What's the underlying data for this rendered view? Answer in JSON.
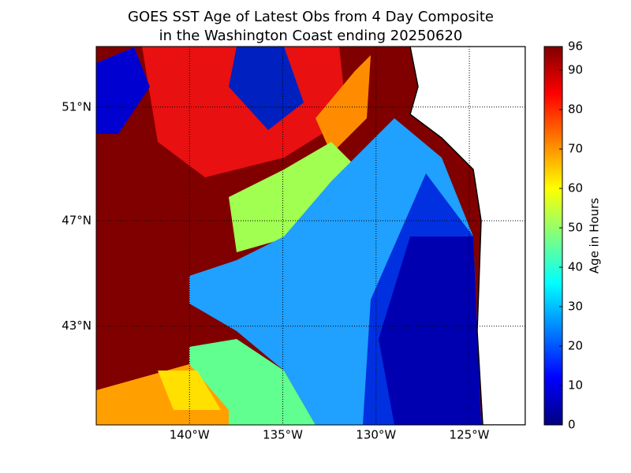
{
  "title": [
    "GOES SST Age of Latest Obs from 4 Day Composite",
    "in the Washington Coast ending 20250620"
  ],
  "map": {
    "lon_range": [
      -145,
      -122
    ],
    "lat_range": [
      39,
      53
    ],
    "lat_ticks": [
      {
        "value": 51,
        "label": "51°N"
      },
      {
        "value": 47,
        "label": "47°N"
      },
      {
        "value": 43,
        "label": "43°N"
      }
    ],
    "lon_ticks": [
      {
        "value": -140,
        "label": "140°W"
      },
      {
        "value": -135,
        "label": "135°W"
      },
      {
        "value": -130,
        "label": "130°W"
      },
      {
        "value": -125,
        "label": "125°W"
      }
    ],
    "grid": true
  },
  "colorbar": {
    "label": "Age in Hours",
    "range": [
      0,
      96
    ],
    "ticks": [
      0,
      10,
      20,
      30,
      40,
      50,
      60,
      70,
      80,
      90,
      96
    ]
  }
}
